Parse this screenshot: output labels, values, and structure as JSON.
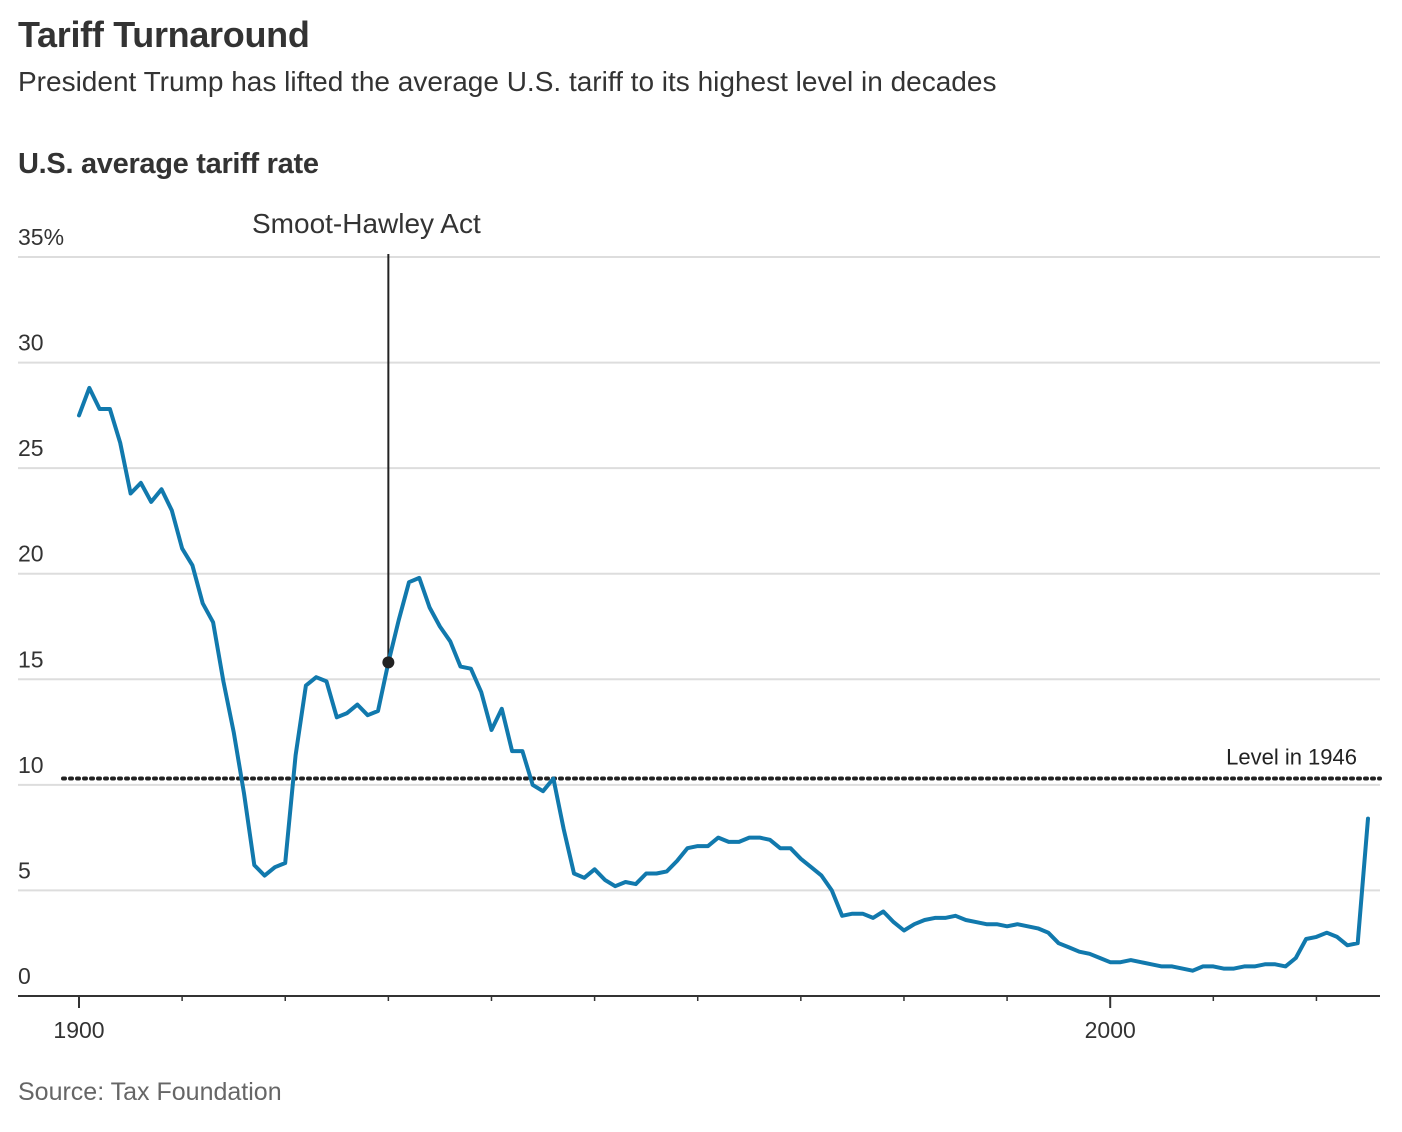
{
  "header": {
    "title": "Tariff Turnaround",
    "subtitle": "President Trump has lifted the average U.S. tariff to its highest level in decades"
  },
  "chart_label": "U.S. average tariff rate",
  "source": "Source: Tax Foundation",
  "colors": {
    "line": "#1179ad",
    "grid": "#dddddd",
    "axis": "#333333",
    "annotation": "#222222"
  },
  "chart_data": {
    "type": "line",
    "title": "U.S. average tariff rate",
    "xlim": [
      1900,
      2025
    ],
    "ylim": [
      0,
      35
    ],
    "y_ticks": [
      0,
      5,
      10,
      15,
      20,
      25,
      30,
      35
    ],
    "y_tick_labels": [
      "0",
      "5",
      "10",
      "15",
      "20",
      "25",
      "30",
      "35%"
    ],
    "x_tick_labels": [
      {
        "value": 1900,
        "label": "1900"
      },
      {
        "value": 2000,
        "label": "2000"
      }
    ],
    "x_minor_ticks": [
      1900,
      1910,
      1920,
      1930,
      1940,
      1950,
      1960,
      1970,
      1980,
      1990,
      2000,
      2010,
      2020
    ],
    "grid": true,
    "series": [
      {
        "values": [
          [
            1900,
            27.5
          ],
          [
            1901,
            28.8
          ],
          [
            1902,
            27.8
          ],
          [
            1903,
            27.8
          ],
          [
            1904,
            26.2
          ],
          [
            1905,
            23.8
          ],
          [
            1906,
            24.3
          ],
          [
            1907,
            23.4
          ],
          [
            1908,
            24.0
          ],
          [
            1909,
            23.0
          ],
          [
            1910,
            21.2
          ],
          [
            1911,
            20.4
          ],
          [
            1912,
            18.6
          ],
          [
            1913,
            17.7
          ],
          [
            1914,
            14.9
          ],
          [
            1915,
            12.5
          ],
          [
            1916,
            9.6
          ],
          [
            1917,
            6.2
          ],
          [
            1918,
            5.7
          ],
          [
            1919,
            6.1
          ],
          [
            1920,
            6.3
          ],
          [
            1921,
            11.4
          ],
          [
            1922,
            14.7
          ],
          [
            1923,
            15.1
          ],
          [
            1924,
            14.9
          ],
          [
            1925,
            13.2
          ],
          [
            1926,
            13.4
          ],
          [
            1927,
            13.8
          ],
          [
            1928,
            13.3
          ],
          [
            1929,
            13.5
          ],
          [
            1930,
            15.8
          ],
          [
            1931,
            17.8
          ],
          [
            1932,
            19.6
          ],
          [
            1933,
            19.8
          ],
          [
            1934,
            18.4
          ],
          [
            1935,
            17.5
          ],
          [
            1936,
            16.8
          ],
          [
            1937,
            15.6
          ],
          [
            1938,
            15.5
          ],
          [
            1939,
            14.4
          ],
          [
            1940,
            12.6
          ],
          [
            1941,
            13.6
          ],
          [
            1942,
            11.6
          ],
          [
            1943,
            11.6
          ],
          [
            1944,
            10.0
          ],
          [
            1945,
            9.7
          ],
          [
            1946,
            10.3
          ],
          [
            1947,
            7.9
          ],
          [
            1948,
            5.8
          ],
          [
            1949,
            5.6
          ],
          [
            1950,
            6.0
          ],
          [
            1951,
            5.5
          ],
          [
            1952,
            5.2
          ],
          [
            1953,
            5.4
          ],
          [
            1954,
            5.3
          ],
          [
            1955,
            5.8
          ],
          [
            1956,
            5.8
          ],
          [
            1957,
            5.9
          ],
          [
            1958,
            6.4
          ],
          [
            1959,
            7.0
          ],
          [
            1960,
            7.1
          ],
          [
            1961,
            7.1
          ],
          [
            1962,
            7.5
          ],
          [
            1963,
            7.3
          ],
          [
            1964,
            7.3
          ],
          [
            1965,
            7.5
          ],
          [
            1966,
            7.5
          ],
          [
            1967,
            7.4
          ],
          [
            1968,
            7.0
          ],
          [
            1969,
            7.0
          ],
          [
            1970,
            6.5
          ],
          [
            1971,
            6.1
          ],
          [
            1972,
            5.7
          ],
          [
            1973,
            5.0
          ],
          [
            1974,
            3.8
          ],
          [
            1975,
            3.9
          ],
          [
            1976,
            3.9
          ],
          [
            1977,
            3.7
          ],
          [
            1978,
            4.0
          ],
          [
            1979,
            3.5
          ],
          [
            1980,
            3.1
          ],
          [
            1981,
            3.4
          ],
          [
            1982,
            3.6
          ],
          [
            1983,
            3.7
          ],
          [
            1984,
            3.7
          ],
          [
            1985,
            3.8
          ],
          [
            1986,
            3.6
          ],
          [
            1987,
            3.5
          ],
          [
            1988,
            3.4
          ],
          [
            1989,
            3.4
          ],
          [
            1990,
            3.3
          ],
          [
            1991,
            3.4
          ],
          [
            1992,
            3.3
          ],
          [
            1993,
            3.2
          ],
          [
            1994,
            3.0
          ],
          [
            1995,
            2.5
          ],
          [
            1996,
            2.3
          ],
          [
            1997,
            2.1
          ],
          [
            1998,
            2.0
          ],
          [
            1999,
            1.8
          ],
          [
            2000,
            1.6
          ],
          [
            2001,
            1.6
          ],
          [
            2002,
            1.7
          ],
          [
            2003,
            1.6
          ],
          [
            2004,
            1.5
          ],
          [
            2005,
            1.4
          ],
          [
            2006,
            1.4
          ],
          [
            2007,
            1.3
          ],
          [
            2008,
            1.2
          ],
          [
            2009,
            1.4
          ],
          [
            2010,
            1.4
          ],
          [
            2011,
            1.3
          ],
          [
            2012,
            1.3
          ],
          [
            2013,
            1.4
          ],
          [
            2014,
            1.4
          ],
          [
            2015,
            1.5
          ],
          [
            2016,
            1.5
          ],
          [
            2017,
            1.4
          ],
          [
            2018,
            1.8
          ],
          [
            2019,
            2.7
          ],
          [
            2020,
            2.8
          ],
          [
            2021,
            3.0
          ],
          [
            2022,
            2.8
          ],
          [
            2023,
            2.4
          ],
          [
            2024,
            2.5
          ],
          [
            2025,
            8.4
          ]
        ]
      }
    ],
    "annotations": [
      {
        "type": "marker",
        "x": 1930,
        "y": 15.8,
        "label": "Smoot-Hawley Act"
      }
    ],
    "reference_lines": [
      {
        "y": 10.3,
        "label": "Level in 1946",
        "style": "dotted"
      }
    ]
  }
}
